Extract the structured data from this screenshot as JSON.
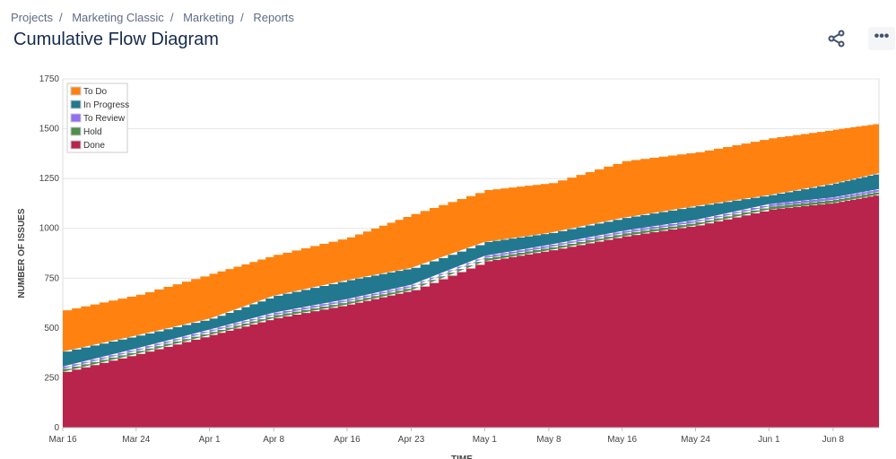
{
  "breadcrumb": [
    "Projects",
    "Marketing Classic",
    "Marketing",
    "Reports"
  ],
  "title": "Cumulative Flow Diagram",
  "actions": {
    "share_icon": "share-icon",
    "more_label": "•••"
  },
  "chart_data": {
    "type": "area",
    "stacked": true,
    "xlabel": "TIME",
    "ylabel": "NUMBER OF ISSUES",
    "ylim": [
      0,
      1750
    ],
    "yticks": [
      0,
      250,
      500,
      750,
      1000,
      1250,
      1500,
      1750
    ],
    "xticks": [
      "Mar 16",
      "Mar 24",
      "Apr 1",
      "Apr 8",
      "Apr 16",
      "Apr 23",
      "May 1",
      "May 8",
      "May 16",
      "May 24",
      "Jun 1",
      "Jun 8"
    ],
    "x": [
      "Mar 16",
      "Mar 24",
      "Apr 1",
      "Apr 8",
      "Apr 16",
      "Apr 23",
      "May 1",
      "May 8",
      "May 16",
      "May 24",
      "Jun 1",
      "Jun 8",
      "Jun 13"
    ],
    "grid": true,
    "legend_position": "top-left",
    "series": [
      {
        "name": "Done",
        "color": "#b8244c",
        "values": [
          280,
          370,
          465,
          550,
          618,
          690,
          835,
          890,
          960,
          1015,
          1095,
          1128,
          1170
        ]
      },
      {
        "name": "Hold",
        "color": "#4f8e4f",
        "values": [
          15,
          15,
          15,
          15,
          15,
          15,
          15,
          15,
          15,
          15,
          15,
          15,
          15
        ]
      },
      {
        "name": "To Review",
        "color": "#9370f0",
        "values": [
          12,
          12,
          12,
          12,
          12,
          12,
          12,
          12,
          12,
          12,
          12,
          12,
          12
        ]
      },
      {
        "name": "In Progress",
        "color": "#22788f",
        "values": [
          75,
          65,
          55,
          85,
          95,
          85,
          70,
          60,
          65,
          70,
          45,
          70,
          80
        ]
      },
      {
        "name": "To Do",
        "color": "#ff8210",
        "values": [
          207,
          205,
          225,
          205,
          215,
          270,
          260,
          250,
          285,
          270,
          285,
          270,
          250
        ]
      }
    ],
    "legend_order": [
      "To Do",
      "In Progress",
      "To Review",
      "Hold",
      "Done"
    ]
  }
}
